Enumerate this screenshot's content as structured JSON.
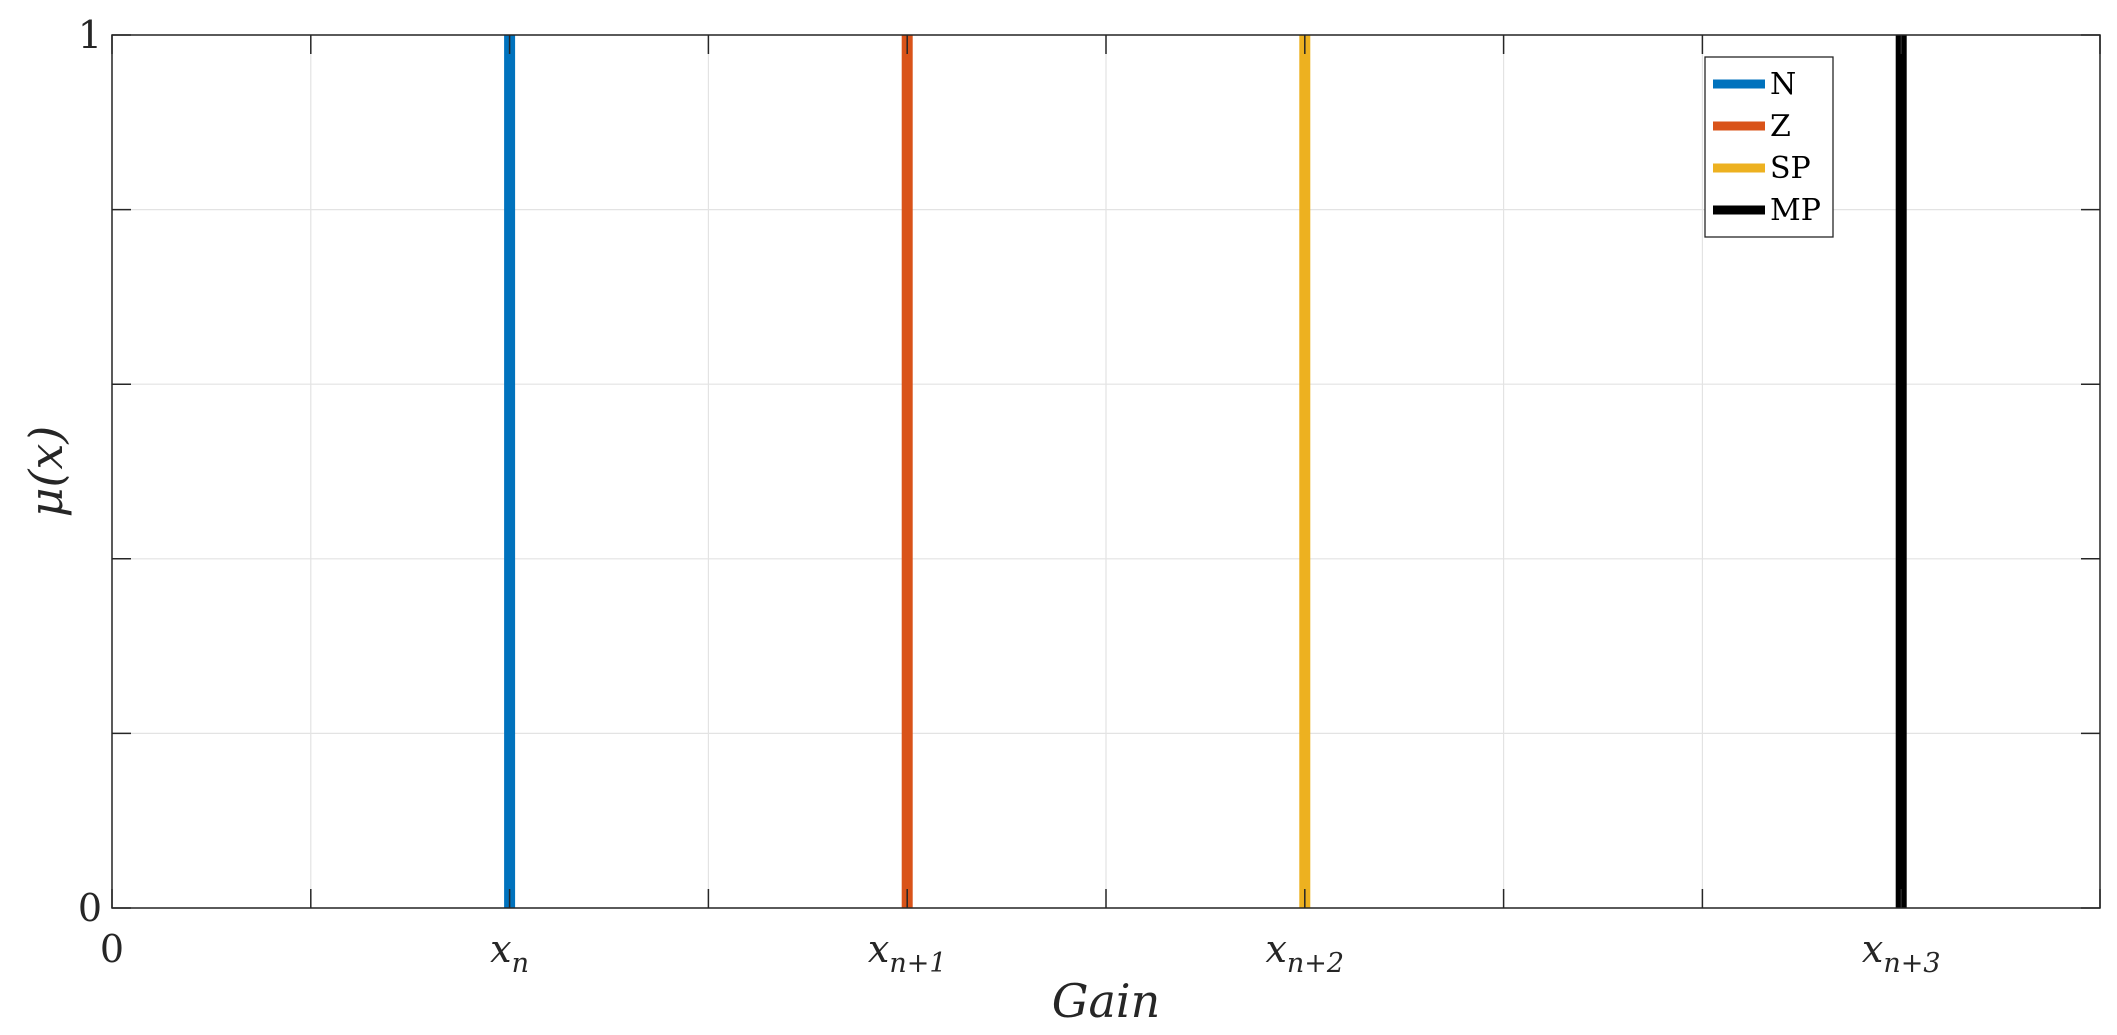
{
  "chart_data": {
    "type": "line",
    "title": "",
    "xlabel": "Gain",
    "ylabel": "μ(x)",
    "xlim": [
      0,
      10
    ],
    "ylim": [
      0,
      1
    ],
    "grid": true,
    "legend_position": "top-right",
    "x_ticks": [
      {
        "value": 0,
        "base": "0",
        "sub": ""
      },
      {
        "value": 1,
        "base": "",
        "sub": ""
      },
      {
        "value": 2,
        "base": "x",
        "sub": "n"
      },
      {
        "value": 3,
        "base": "",
        "sub": ""
      },
      {
        "value": 4,
        "base": "x",
        "sub": "n+1"
      },
      {
        "value": 5,
        "base": "",
        "sub": ""
      },
      {
        "value": 6,
        "base": "x",
        "sub": "n+2"
      },
      {
        "value": 7,
        "base": "",
        "sub": ""
      },
      {
        "value": 8,
        "base": "",
        "sub": ""
      },
      {
        "value": 9,
        "base": "x",
        "sub": "n+3"
      },
      {
        "value": 10,
        "base": "",
        "sub": ""
      }
    ],
    "y_ticks": [
      {
        "value": 0,
        "label": "0"
      },
      {
        "value": 0.2,
        "label": ""
      },
      {
        "value": 0.4,
        "label": ""
      },
      {
        "value": 0.6,
        "label": ""
      },
      {
        "value": 0.8,
        "label": ""
      },
      {
        "value": 1,
        "label": "1"
      }
    ],
    "series": [
      {
        "name": "N",
        "color": "#0072BD",
        "x": [
          2,
          2
        ],
        "y": [
          0,
          1
        ]
      },
      {
        "name": "Z",
        "color": "#D95319",
        "x": [
          4,
          4
        ],
        "y": [
          0,
          1
        ]
      },
      {
        "name": "SP",
        "color": "#EDB120",
        "x": [
          6,
          6
        ],
        "y": [
          0,
          1
        ]
      },
      {
        "name": "MP",
        "color": "#000000",
        "x": [
          9,
          9
        ],
        "y": [
          0,
          1
        ]
      }
    ]
  }
}
